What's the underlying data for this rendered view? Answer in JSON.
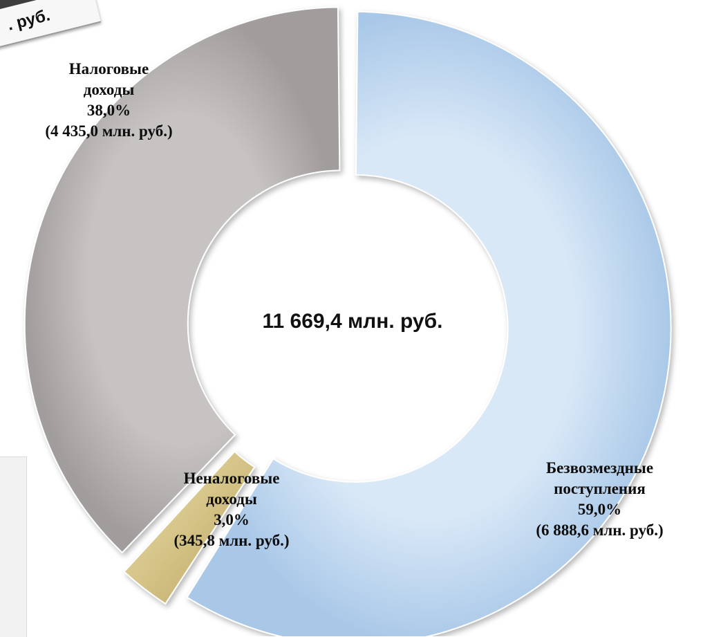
{
  "header_fragment": ". руб.",
  "center_total": "11 669,4 млн. руб.",
  "colors": {
    "tax": "#b9b5b5",
    "non_tax": "#d9c98f",
    "grants": "#bcd5ee"
  },
  "chart_data": {
    "type": "pie",
    "donut": true,
    "total": 11669.4,
    "total_label": "11 669,4 млн. руб.",
    "slices": [
      {
        "name": "Безвозмездные поступления",
        "name_lines": [
          "Безвозмездные",
          "поступления"
        ],
        "percent_label": "59,0%",
        "value": 6888.6,
        "value_label": "(6 888,6 млн. руб.)",
        "color": "#bcd5ee"
      },
      {
        "name": "Неналоговые доходы",
        "name_lines": [
          "Неналоговые",
          "доходы"
        ],
        "percent_label": "3,0%",
        "value": 345.8,
        "value_label": "(345,8 млн. руб.)",
        "color": "#d9c98f"
      },
      {
        "name": "Налоговые доходы",
        "name_lines": [
          "Налоговые",
          "доходы"
        ],
        "percent_label": "38,0%",
        "value": 4435.0,
        "value_label": "(4 435,0 млн. руб.)",
        "color": "#b9b5b5"
      }
    ]
  }
}
